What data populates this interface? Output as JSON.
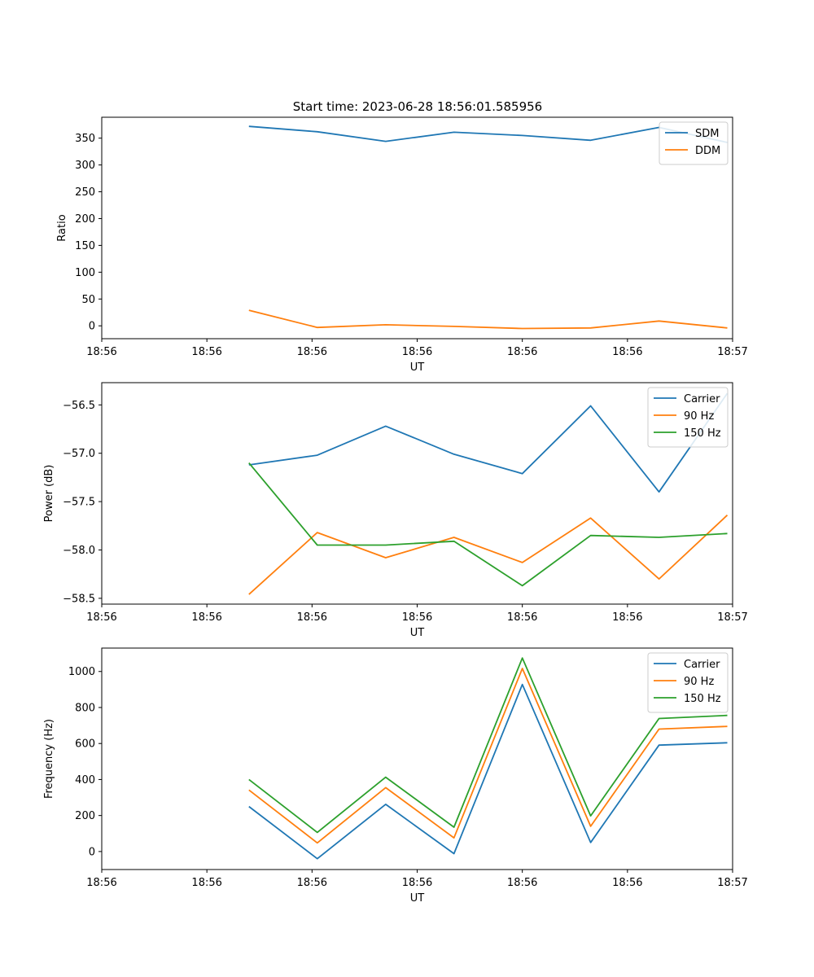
{
  "figure_title": "Start time: 2023-06-28 18:56:01.585956",
  "chart_data": [
    {
      "type": "line",
      "xlabel": "UT",
      "ylabel": "Ratio",
      "x": [
        0.28,
        0.41,
        0.54,
        0.67,
        0.8,
        0.93,
        1.06,
        1.19
      ],
      "xlim": [
        0.0,
        1.2
      ],
      "xticks": [
        0.0,
        0.2,
        0.4,
        0.6,
        0.8,
        1.0,
        1.2
      ],
      "xtick_labels": [
        "18:56",
        "18:56",
        "18:56",
        "18:56",
        "18:56",
        "18:56",
        "18:57"
      ],
      "ylim": [
        -24,
        389
      ],
      "yticks": [
        0,
        50,
        100,
        150,
        200,
        250,
        300,
        350
      ],
      "ytick_labels": [
        "0",
        "50",
        "100",
        "150",
        "200",
        "250",
        "300",
        "350"
      ],
      "grid": false,
      "legend_position": "upper right",
      "series": [
        {
          "name": "SDM",
          "color": "#1f77b4",
          "values": [
            372,
            362,
            344,
            361,
            355,
            346,
            370,
            342
          ]
        },
        {
          "name": "DDM",
          "color": "#ff7f0e",
          "values": [
            29,
            -3,
            2,
            -1,
            -5,
            -4,
            9,
            -4
          ]
        }
      ]
    },
    {
      "type": "line",
      "xlabel": "UT",
      "ylabel": "Power (dB)",
      "x": [
        0.28,
        0.41,
        0.54,
        0.67,
        0.8,
        0.93,
        1.06,
        1.19
      ],
      "xlim": [
        0.0,
        1.2
      ],
      "xticks": [
        0.0,
        0.2,
        0.4,
        0.6,
        0.8,
        1.0,
        1.2
      ],
      "xtick_labels": [
        "18:56",
        "18:56",
        "18:56",
        "18:56",
        "18:56",
        "18:56",
        "18:57"
      ],
      "ylim": [
        -58.56,
        -56.27
      ],
      "yticks": [
        -58.5,
        -58.0,
        -57.5,
        -57.0,
        -56.5
      ],
      "ytick_labels": [
        "−58.5",
        "−58.0",
        "−57.5",
        "−57.0",
        "−56.5"
      ],
      "grid": false,
      "legend_position": "upper right",
      "series": [
        {
          "name": "Carrier",
          "color": "#1f77b4",
          "values": [
            -57.12,
            -57.02,
            -56.72,
            -57.01,
            -57.21,
            -56.51,
            -57.4,
            -56.38
          ]
        },
        {
          "name": "90 Hz",
          "color": "#ff7f0e",
          "values": [
            -58.46,
            -57.82,
            -58.08,
            -57.87,
            -58.13,
            -57.67,
            -58.3,
            -57.64
          ]
        },
        {
          "name": "150 Hz",
          "color": "#2ca02c",
          "values": [
            -57.1,
            -57.95,
            -57.95,
            -57.91,
            -58.37,
            -57.85,
            -57.87,
            -57.83
          ]
        }
      ]
    },
    {
      "type": "line",
      "xlabel": "UT",
      "ylabel": "Frequency (Hz)",
      "x": [
        0.28,
        0.41,
        0.54,
        0.67,
        0.8,
        0.93,
        1.06,
        1.19
      ],
      "xlim": [
        0.0,
        1.2
      ],
      "xticks": [
        0.0,
        0.2,
        0.4,
        0.6,
        0.8,
        1.0,
        1.2
      ],
      "xtick_labels": [
        "18:56",
        "18:56",
        "18:56",
        "18:56",
        "18:56",
        "18:56",
        "18:57"
      ],
      "ylim": [
        -100,
        1130
      ],
      "yticks": [
        0,
        200,
        400,
        600,
        800,
        1000
      ],
      "ytick_labels": [
        "0",
        "200",
        "400",
        "600",
        "800",
        "1000"
      ],
      "grid": false,
      "legend_position": "upper right",
      "series": [
        {
          "name": "Carrier",
          "color": "#1f77b4",
          "values": [
            250,
            -40,
            262,
            -12,
            928,
            50,
            591,
            604
          ]
        },
        {
          "name": "90 Hz",
          "color": "#ff7f0e",
          "values": [
            342,
            48,
            355,
            76,
            1017,
            140,
            680,
            695
          ]
        },
        {
          "name": "150 Hz",
          "color": "#2ca02c",
          "values": [
            400,
            106,
            413,
            135,
            1075,
            198,
            739,
            756
          ]
        }
      ]
    }
  ]
}
